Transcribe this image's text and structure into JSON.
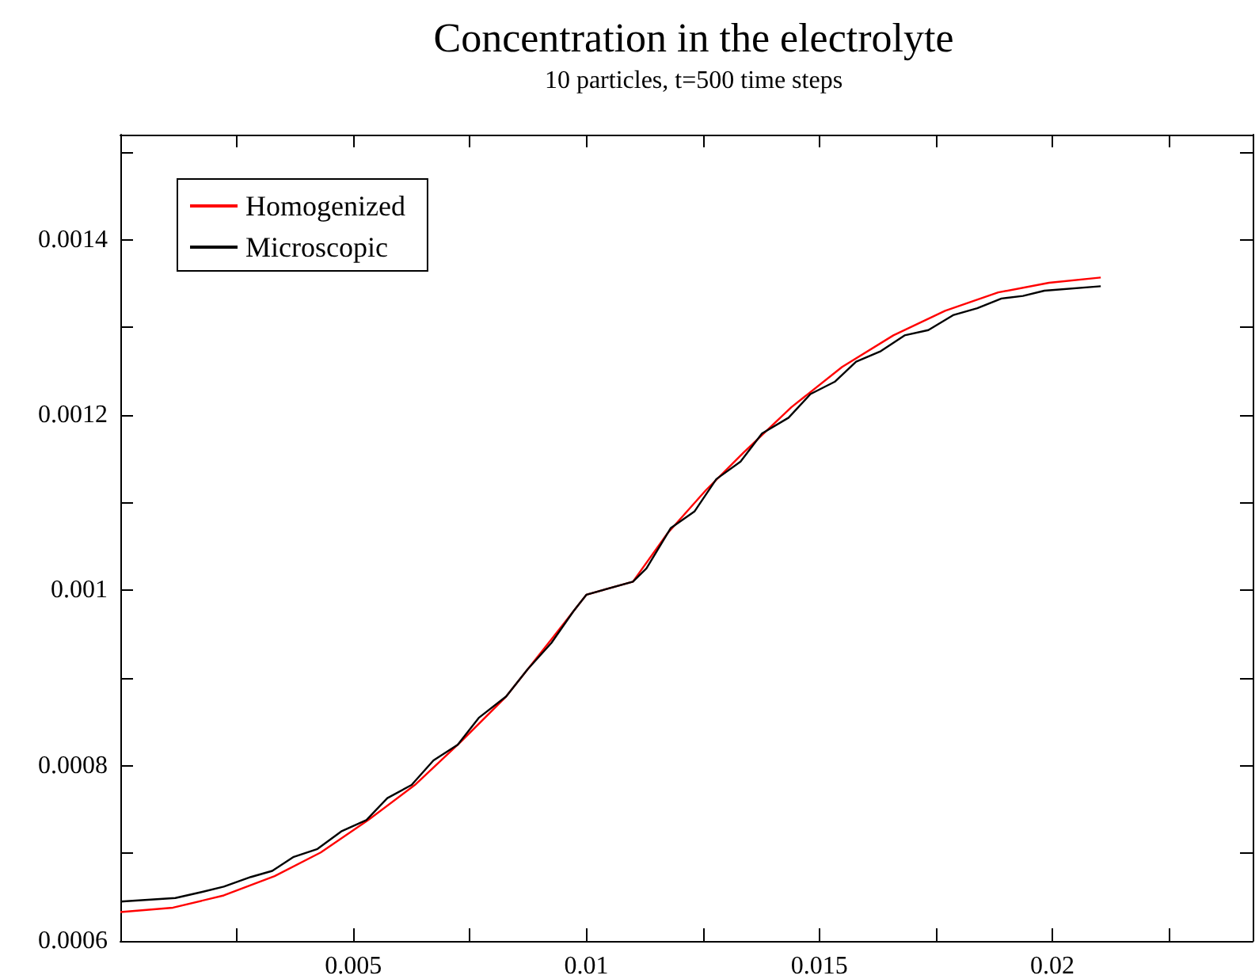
{
  "chart_data": {
    "type": "line",
    "title": "Concentration in the electrolyte",
    "subtitle": "10 particles, t=500 time steps",
    "xlim": [
      0,
      0.0243
    ],
    "ylim": [
      0.0006,
      0.00152
    ],
    "xticks": [
      {
        "value": 0.0025,
        "label": null
      },
      0.005,
      {
        "value": 0.0075,
        "label": null
      },
      0.01,
      {
        "value": 0.0125,
        "label": null
      },
      0.015,
      {
        "value": 0.0175,
        "label": null
      },
      0.02,
      {
        "value": 0.0225,
        "label": null
      }
    ],
    "yticks": [
      0.0006,
      {
        "value": 0.0007,
        "label": null
      },
      0.0008,
      {
        "value": 0.0009,
        "label": null
      },
      0.001,
      {
        "value": 0.0011,
        "label": null
      },
      0.0012,
      {
        "value": 0.0013,
        "label": null
      },
      0.0014,
      {
        "value": 0.0015,
        "label": null
      }
    ],
    "grid": false,
    "legend": "top left",
    "marker": "none",
    "line_style": "solid",
    "series": [
      {
        "name": "Homogenized",
        "color": "#ff0000",
        "x": [
          0,
          0.00113,
          0.00222,
          0.00331,
          0.0043,
          0.00532,
          0.00632,
          0.0073,
          0.00828,
          0.00925,
          0.01,
          0.011,
          0.01174,
          0.01256,
          0.01337,
          0.0144,
          0.01549,
          0.01659,
          0.0177,
          0.01884,
          0.01993,
          0.02104
        ],
        "values": [
          0.000633,
          0.000638,
          0.000652,
          0.000674,
          0.000701,
          0.000738,
          0.000778,
          0.000827,
          0.000879,
          0.000944,
          0.000995,
          0.00101,
          0.001065,
          0.001114,
          0.001157,
          0.001209,
          0.001255,
          0.001291,
          0.001319,
          0.00134,
          0.001351,
          0.001357
        ]
      },
      {
        "name": "Microscopic",
        "color": "#000000",
        "x": [
          0,
          0.00118,
          0.00176,
          0.00222,
          0.0028,
          0.00326,
          0.00372,
          0.00423,
          0.00474,
          0.00528,
          0.00573,
          0.00625,
          0.00672,
          0.00724,
          0.0077,
          0.00828,
          0.00874,
          0.00925,
          0.00972,
          0.01,
          0.011,
          0.01129,
          0.01181,
          0.01232,
          0.01279,
          0.01331,
          0.01377,
          0.01434,
          0.01481,
          0.01533,
          0.01579,
          0.01632,
          0.01683,
          0.01734,
          0.01787,
          0.01839,
          0.01891,
          0.01937,
          0.01983,
          0.02104
        ],
        "values": [
          0.000645,
          0.000649,
          0.000656,
          0.000662,
          0.000673,
          0.00068,
          0.000696,
          0.000705,
          0.000725,
          0.000738,
          0.000763,
          0.000778,
          0.000806,
          0.000824,
          0.000855,
          0.000879,
          0.00091,
          0.00094,
          0.000976,
          0.000995,
          0.00101,
          0.001025,
          0.001071,
          0.00109,
          0.001127,
          0.001147,
          0.001179,
          0.001197,
          0.001224,
          0.001238,
          0.001261,
          0.001273,
          0.001291,
          0.001297,
          0.001314,
          0.001322,
          0.001333,
          0.001336,
          0.001342,
          0.001347
        ]
      }
    ]
  }
}
